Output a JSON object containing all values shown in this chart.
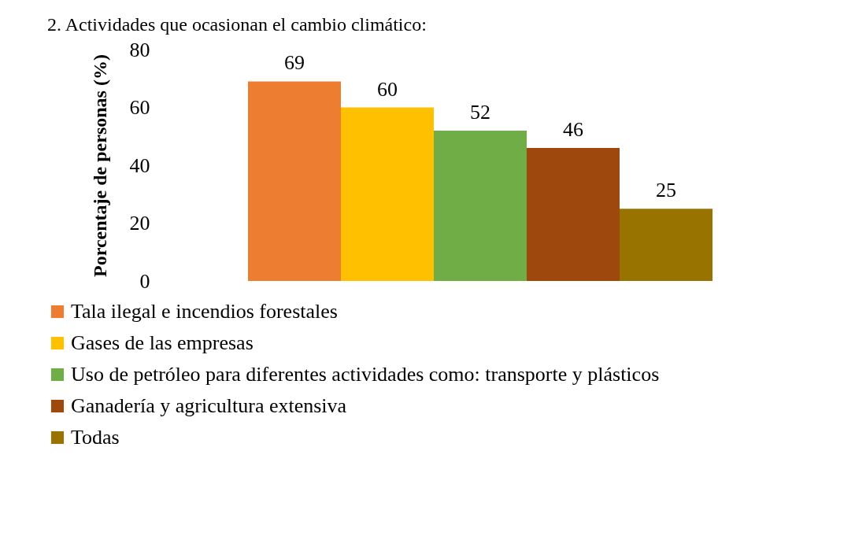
{
  "chart_data": {
    "type": "bar",
    "title": "2. Actividades que ocasionan el cambio climático:",
    "ylabel": "Porcentaje de personas (%)",
    "categories": [
      null
    ],
    "series": [
      {
        "name": "Tala ilegal e incendios forestales",
        "color": "#ed7d31",
        "values": [
          69
        ]
      },
      {
        "name": "Gases de las empresas",
        "color": "#ffc000",
        "values": [
          60
        ]
      },
      {
        "name": "Uso de petróleo para diferentes actividades como: transporte y plásticos",
        "color": "#70ad47",
        "values": [
          52
        ]
      },
      {
        "name": "Ganadería y agricultura extensiva",
        "color": "#9e480e",
        "values": [
          46
        ]
      },
      {
        "name": "Todas",
        "color": "#997300",
        "values": [
          25
        ]
      }
    ],
    "ylim": [
      0,
      80
    ],
    "yticks": [
      0,
      20,
      40,
      60,
      80
    ],
    "data_labels": true,
    "legend": "bottom"
  }
}
